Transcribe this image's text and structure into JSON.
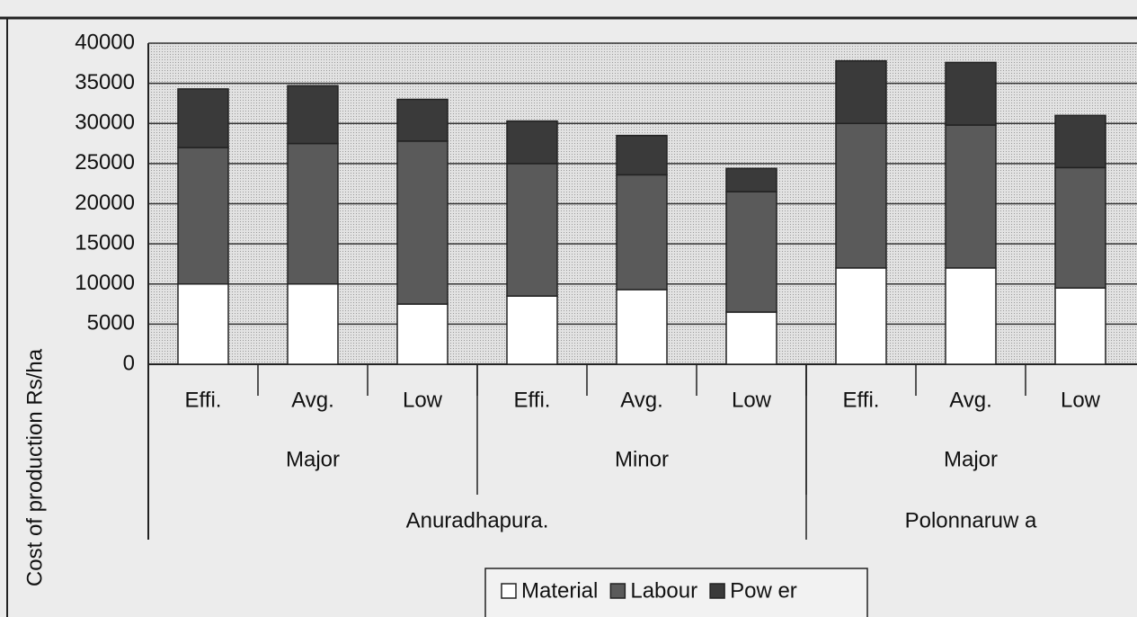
{
  "chart_data": {
    "type": "stacked_bar",
    "y_label": "Cost of production Rs/ha",
    "categories": [
      "Effi.",
      "Avg.",
      "Low",
      "Effi.",
      "Avg.",
      "Low",
      "Effi.",
      "Avg.",
      "Low"
    ],
    "groups": [
      {
        "label": "Major",
        "span": 3
      },
      {
        "label": "Minor",
        "span": 3
      },
      {
        "label": "Major",
        "span": 3
      }
    ],
    "regions": [
      {
        "label": "Anuradhapura.",
        "span": 6
      },
      {
        "label": "Polonnaruw a",
        "span": 3
      }
    ],
    "series": [
      {
        "name": "Material",
        "color": "#ffffff",
        "values": [
          10000,
          10000,
          7500,
          8500,
          9300,
          6500,
          12000,
          12000,
          9500
        ]
      },
      {
        "name": "Labour",
        "color": "#5a5a5a",
        "values": [
          17000,
          17500,
          20300,
          16500,
          14300,
          15000,
          18000,
          17800,
          15000
        ]
      },
      {
        "name": "Pow er",
        "color": "#3a3a3a",
        "values": [
          7300,
          7200,
          5200,
          5300,
          4900,
          2900,
          7800,
          7800,
          6500
        ]
      }
    ],
    "ylim": [
      0,
      40000
    ],
    "yticks": [
      0,
      5000,
      10000,
      15000,
      20000,
      25000,
      30000,
      35000,
      40000
    ],
    "grid": true,
    "legend": "bottom"
  }
}
